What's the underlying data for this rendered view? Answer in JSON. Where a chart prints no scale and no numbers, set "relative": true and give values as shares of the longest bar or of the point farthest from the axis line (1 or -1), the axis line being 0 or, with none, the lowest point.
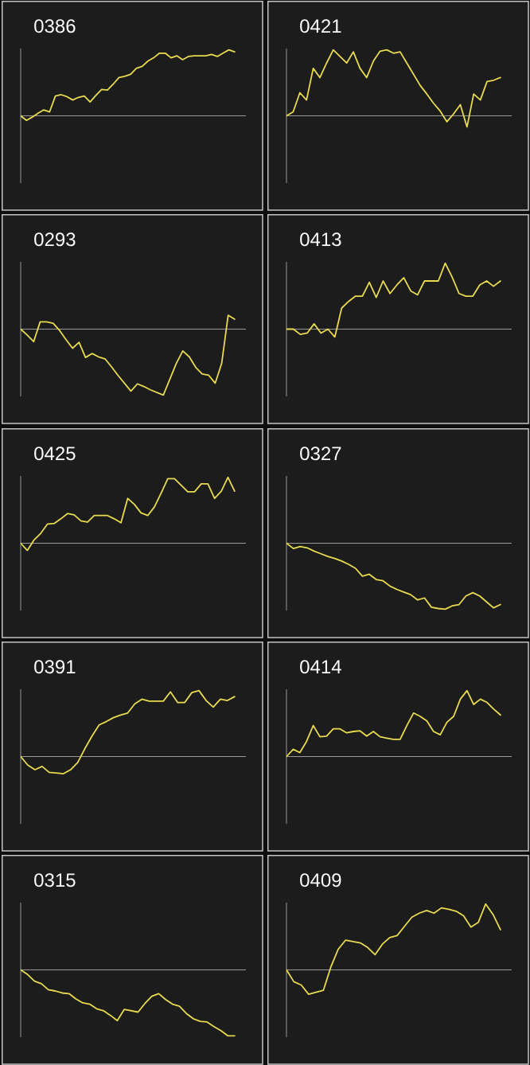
{
  "chart_data": [
    {
      "type": "line",
      "title": "0386",
      "relative": true,
      "color": "#e8da4e",
      "categories": [
        null,
        null,
        null,
        null,
        null,
        null,
        null,
        null,
        null,
        null,
        null,
        null,
        null,
        null,
        null,
        null,
        null,
        null,
        null,
        null,
        null,
        null,
        null,
        null,
        null,
        null,
        null,
        null,
        null,
        null,
        null,
        null,
        null,
        null,
        null,
        null,
        null,
        null
      ],
      "values": [
        0,
        -0.07,
        -0.02,
        0.04,
        0.09,
        0.06,
        0.3,
        0.32,
        0.29,
        0.24,
        0.28,
        0.3,
        0.21,
        0.31,
        0.4,
        0.39,
        0.48,
        0.58,
        0.6,
        0.63,
        0.72,
        0.75,
        0.83,
        0.88,
        0.95,
        0.95,
        0.88,
        0.91,
        0.85,
        0.9,
        0.91,
        0.91,
        0.91,
        0.93,
        0.9,
        0.95,
        1,
        0.97
      ]
    },
    {
      "type": "line",
      "title": "0421",
      "relative": true,
      "color": "#e8da4e",
      "categories": [
        null,
        null,
        null,
        null,
        null,
        null,
        null,
        null,
        null,
        null,
        null,
        null,
        null,
        null,
        null,
        null,
        null,
        null,
        null,
        null,
        null,
        null,
        null,
        null,
        null,
        null,
        null,
        null,
        null,
        null,
        null,
        null,
        null
      ],
      "values": [
        0,
        0.06,
        0.35,
        0.24,
        0.72,
        0.58,
        0.8,
        1,
        0.9,
        0.8,
        0.97,
        0.72,
        0.58,
        0.83,
        0.98,
        1,
        0.95,
        0.97,
        0.8,
        0.63,
        0.46,
        0.33,
        0.19,
        0.07,
        -0.09,
        0.03,
        0.17,
        -0.17,
        0.33,
        0.24,
        0.52,
        0.54,
        0.58
      ]
    },
    {
      "type": "line",
      "title": "0293",
      "relative": true,
      "color": "#e8da4e",
      "categories": [
        null,
        null,
        null,
        null,
        null,
        null,
        null,
        null,
        null,
        null,
        null,
        null,
        null,
        null,
        null,
        null,
        null,
        null,
        null,
        null,
        null,
        null,
        null,
        null,
        null,
        null,
        null,
        null,
        null,
        null,
        null,
        null,
        null,
        null
      ],
      "values": [
        0,
        -0.09,
        -0.19,
        0.11,
        0.11,
        0.09,
        -0.02,
        -0.16,
        -0.29,
        -0.2,
        -0.43,
        -0.37,
        -0.42,
        -0.45,
        -0.57,
        -0.7,
        -0.82,
        -0.94,
        -0.83,
        -0.87,
        -0.92,
        -0.96,
        -1,
        -0.76,
        -0.52,
        -0.33,
        -0.42,
        -0.58,
        -0.68,
        -0.7,
        -0.82,
        -0.52,
        0.21,
        0.15
      ]
    },
    {
      "type": "line",
      "title": "0413",
      "relative": true,
      "color": "#e8da4e",
      "categories": [
        null,
        null,
        null,
        null,
        null,
        null,
        null,
        null,
        null,
        null,
        null,
        null,
        null,
        null,
        null,
        null,
        null,
        null,
        null,
        null,
        null,
        null,
        null,
        null,
        null,
        null,
        null,
        null,
        null,
        null,
        null,
        null
      ],
      "values": [
        0,
        0,
        -0.08,
        -0.06,
        0.08,
        -0.06,
        0,
        -0.12,
        0.32,
        0.42,
        0.5,
        0.5,
        0.71,
        0.48,
        0.73,
        0.54,
        0.67,
        0.78,
        0.58,
        0.52,
        0.73,
        0.73,
        0.73,
        1,
        0.79,
        0.54,
        0.5,
        0.5,
        0.67,
        0.73,
        0.65,
        0.73
      ]
    },
    {
      "type": "line",
      "title": "0425",
      "relative": true,
      "color": "#e8da4e",
      "categories": [
        null,
        null,
        null,
        null,
        null,
        null,
        null,
        null,
        null,
        null,
        null,
        null,
        null,
        null,
        null,
        null,
        null,
        null,
        null,
        null,
        null,
        null,
        null,
        null,
        null,
        null,
        null,
        null,
        null,
        null,
        null,
        null,
        null
      ],
      "values": [
        0,
        -0.11,
        0.05,
        0.15,
        0.29,
        0.3,
        0.37,
        0.45,
        0.43,
        0.34,
        0.32,
        0.42,
        0.42,
        0.42,
        0.37,
        0.31,
        0.68,
        0.59,
        0.46,
        0.42,
        0.55,
        0.76,
        0.98,
        0.98,
        0.88,
        0.78,
        0.78,
        0.9,
        0.9,
        0.68,
        0.79,
        1,
        0.79
      ]
    },
    {
      "type": "line",
      "title": "0327",
      "relative": true,
      "color": "#e8da4e",
      "categories": [
        null,
        null,
        null,
        null,
        null,
        null,
        null,
        null,
        null,
        null,
        null,
        null,
        null,
        null,
        null,
        null,
        null,
        null,
        null,
        null,
        null,
        null,
        null,
        null,
        null,
        null,
        null,
        null,
        null,
        null,
        null,
        null
      ],
      "values": [
        0,
        -0.08,
        -0.05,
        -0.07,
        -0.12,
        -0.16,
        -0.2,
        -0.23,
        -0.27,
        -0.32,
        -0.38,
        -0.5,
        -0.47,
        -0.55,
        -0.57,
        -0.65,
        -0.7,
        -0.74,
        -0.78,
        -0.86,
        -0.83,
        -0.97,
        -0.99,
        -1,
        -0.95,
        -0.93,
        -0.8,
        -0.75,
        -0.8,
        -0.89,
        -0.98,
        -0.93
      ]
    },
    {
      "type": "line",
      "title": "0391",
      "relative": true,
      "color": "#e8da4e",
      "categories": [
        null,
        null,
        null,
        null,
        null,
        null,
        null,
        null,
        null,
        null,
        null,
        null,
        null,
        null,
        null,
        null,
        null,
        null,
        null,
        null,
        null,
        null,
        null,
        null,
        null,
        null,
        null,
        null,
        null,
        null,
        null
      ],
      "values": [
        0,
        -0.13,
        -0.2,
        -0.15,
        -0.24,
        -0.25,
        -0.26,
        -0.2,
        -0.09,
        0.12,
        0.31,
        0.48,
        0.53,
        0.59,
        0.63,
        0.66,
        0.8,
        0.87,
        0.84,
        0.84,
        0.84,
        0.98,
        0.82,
        0.82,
        0.97,
        1,
        0.85,
        0.75,
        0.87,
        0.85,
        0.91
      ]
    },
    {
      "type": "line",
      "title": "0414",
      "relative": true,
      "color": "#e8da4e",
      "categories": [
        null,
        null,
        null,
        null,
        null,
        null,
        null,
        null,
        null,
        null,
        null,
        null,
        null,
        null,
        null,
        null,
        null,
        null,
        null,
        null,
        null,
        null,
        null,
        null,
        null,
        null,
        null,
        null,
        null,
        null,
        null,
        null,
        null
      ],
      "values": [
        0,
        0.11,
        0.06,
        0.23,
        0.47,
        0.3,
        0.31,
        0.42,
        0.42,
        0.36,
        0.38,
        0.39,
        0.31,
        0.38,
        0.3,
        0.28,
        0.26,
        0.26,
        0.47,
        0.66,
        0.61,
        0.54,
        0.38,
        0.33,
        0.52,
        0.61,
        0.87,
        1,
        0.79,
        0.87,
        0.82,
        0.72,
        0.63
      ]
    },
    {
      "type": "line",
      "title": "0315",
      "relative": true,
      "color": "#e8da4e",
      "categories": [
        null,
        null,
        null,
        null,
        null,
        null,
        null,
        null,
        null,
        null,
        null,
        null,
        null,
        null,
        null,
        null,
        null,
        null,
        null,
        null,
        null,
        null,
        null,
        null,
        null,
        null,
        null,
        null,
        null,
        null,
        null,
        null
      ],
      "values": [
        0,
        -0.07,
        -0.17,
        -0.21,
        -0.3,
        -0.32,
        -0.35,
        -0.36,
        -0.44,
        -0.5,
        -0.52,
        -0.59,
        -0.62,
        -0.69,
        -0.77,
        -0.6,
        -0.62,
        -0.64,
        -0.51,
        -0.4,
        -0.36,
        -0.45,
        -0.52,
        -0.55,
        -0.66,
        -0.74,
        -0.78,
        -0.79,
        -0.86,
        -0.92,
        -1,
        -1
      ]
    },
    {
      "type": "line",
      "title": "0409",
      "relative": true,
      "color": "#e8da4e",
      "categories": [
        null,
        null,
        null,
        null,
        null,
        null,
        null,
        null,
        null,
        null,
        null,
        null,
        null,
        null,
        null,
        null,
        null,
        null,
        null,
        null,
        null,
        null,
        null,
        null,
        null,
        null,
        null,
        null,
        null,
        null
      ],
      "values": [
        0,
        -0.18,
        -0.23,
        -0.37,
        -0.34,
        -0.31,
        0.04,
        0.31,
        0.45,
        0.43,
        0.41,
        0.34,
        0.23,
        0.39,
        0.49,
        0.52,
        0.66,
        0.8,
        0.86,
        0.9,
        0.86,
        0.94,
        0.92,
        0.89,
        0.82,
        0.65,
        0.72,
        1,
        0.84,
        0.61
      ]
    }
  ]
}
